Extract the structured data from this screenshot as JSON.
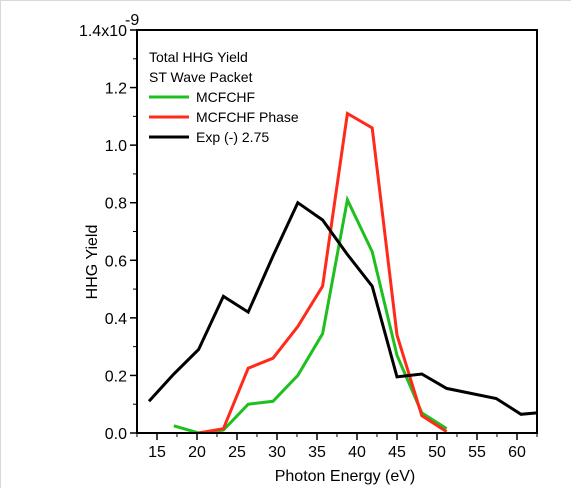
{
  "chart_data": {
    "type": "line",
    "title": "",
    "xlabel": "Photon Energy (eV)",
    "ylabel": "HHG Yield",
    "xlim": [
      12.5,
      62.5
    ],
    "ylim": [
      0,
      1.4
    ],
    "x_ticks": [
      15,
      20,
      25,
      30,
      35,
      40,
      45,
      50,
      55,
      60
    ],
    "x_tick_labels": [
      "15",
      "20",
      "25",
      "30",
      "35",
      "40",
      "45",
      "50",
      "55",
      "60"
    ],
    "y_ticks": [
      0.0,
      0.2,
      0.4,
      0.6,
      0.8,
      1.0,
      1.2,
      1.4
    ],
    "y_tick_labels": [
      "0.0",
      "0.2",
      "0.4",
      "0.6",
      "0.8",
      "1.0",
      "1.2",
      "1.4x10"
    ],
    "y_exponent": "-9",
    "legend_title": [
      "Total HHG Yield",
      "ST Wave Packet"
    ],
    "legend_position": "top-left",
    "grid": false,
    "series": [
      {
        "name": "MCFCHF",
        "color": "#1fbf1f",
        "x": [
          17.1,
          20.2,
          23.3,
          26.4,
          29.5,
          32.6,
          35.7,
          38.8,
          41.9,
          45.0,
          48.1,
          51.2
        ],
        "y": [
          0.025,
          0.0,
          0.01,
          0.1,
          0.11,
          0.2,
          0.345,
          0.81,
          0.63,
          0.27,
          0.07,
          0.015
        ]
      },
      {
        "name": "MCFCHF Phase",
        "color": "#ff2a1a",
        "x": [
          20.2,
          23.3,
          26.4,
          29.5,
          32.6,
          35.7,
          38.8,
          41.9,
          45.0,
          48.1,
          51.2
        ],
        "y": [
          0.0,
          0.015,
          0.225,
          0.26,
          0.37,
          0.51,
          1.11,
          1.06,
          0.34,
          0.06,
          0.005
        ]
      },
      {
        "name": "Exp (-) 2.75",
        "color": "#000000",
        "x": [
          14.0,
          17.1,
          20.2,
          23.3,
          26.4,
          29.5,
          32.6,
          35.7,
          38.8,
          41.9,
          45.0,
          48.1,
          51.2,
          57.4,
          60.5,
          62.5
        ],
        "y": [
          0.11,
          0.205,
          0.29,
          0.475,
          0.42,
          0.615,
          0.8,
          0.74,
          0.62,
          0.51,
          0.195,
          0.205,
          0.155,
          0.12,
          0.065,
          0.07
        ]
      }
    ]
  }
}
